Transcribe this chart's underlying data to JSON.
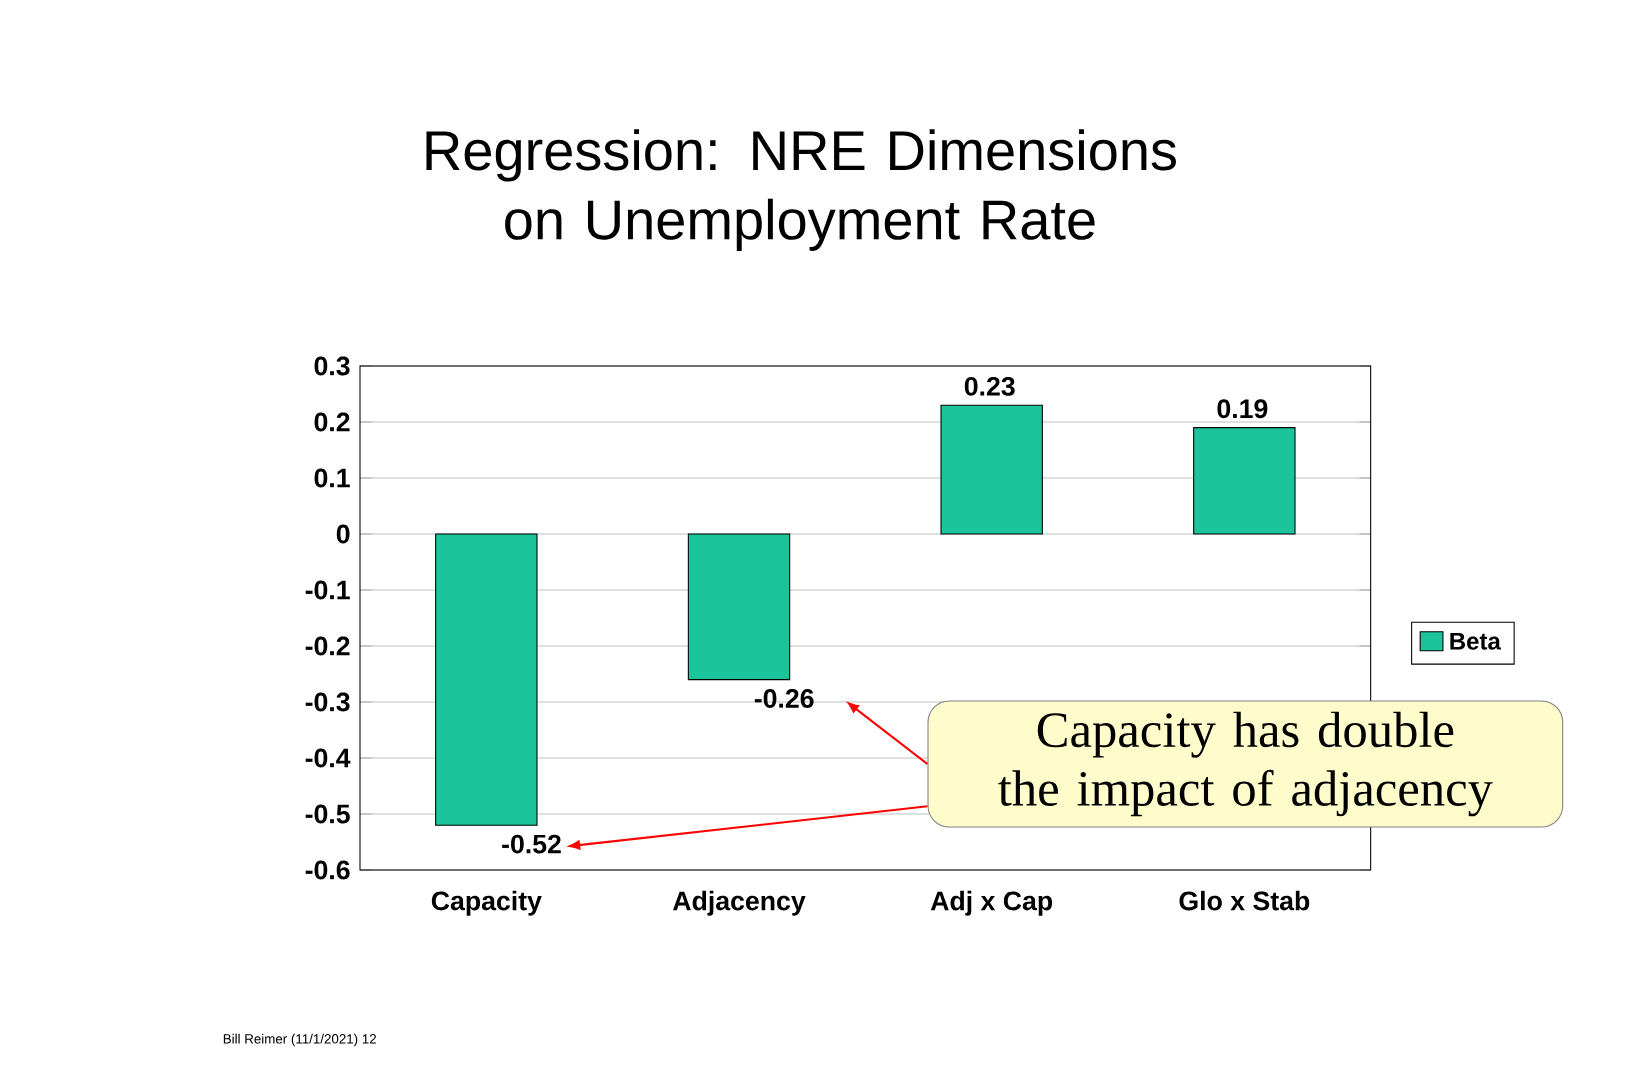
{
  "chart_data": {
    "type": "bar",
    "title": "Regression: NRE Dimensions on Unemployment Rate",
    "categories": [
      "Capacity",
      "Adjacency",
      "Adj x Cap",
      "Glo x Stab"
    ],
    "series": [
      {
        "name": "Beta",
        "color": "#1bc49a",
        "values": [
          -0.52,
          -0.26,
          0.23,
          0.19
        ]
      }
    ],
    "ylim": [
      -0.6,
      0.3
    ],
    "yticks": [
      -0.6,
      -0.5,
      -0.4,
      -0.3,
      -0.2,
      -0.1,
      0,
      0.1,
      0.2,
      0.3
    ],
    "grid": "y",
    "legend": "right",
    "data_labels": true,
    "annotations": [
      "Capacity has double the impact of adjacency",
      "Bill Reimer (11/1/2021) 12"
    ]
  }
}
